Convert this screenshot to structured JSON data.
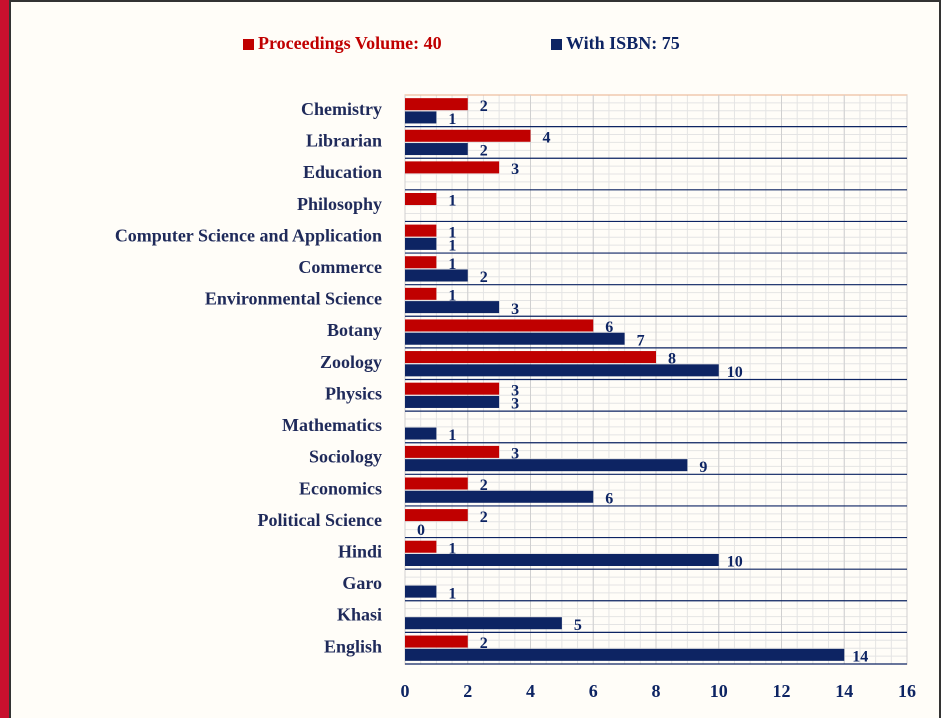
{
  "chart_data": {
    "type": "hbar",
    "categories": [
      "Chemistry",
      "Librarian",
      "Education",
      "Philosophy",
      "Computer Science and Application",
      "Commerce",
      "Environmental Science",
      "Botany",
      "Zoology",
      "Physics",
      "Mathematics",
      "Sociology",
      "Economics",
      "Political Science",
      "Hindi",
      "Garo",
      "Khasi",
      "English"
    ],
    "series": [
      {
        "name": "Proceedings Volume: 40",
        "color": "#c00000",
        "values": [
          2,
          4,
          3,
          1,
          1,
          1,
          1,
          6,
          8,
          3,
          null,
          3,
          2,
          2,
          1,
          null,
          null,
          2
        ]
      },
      {
        "name": "With ISBN: 75",
        "color": "#0d2463",
        "values": [
          1,
          2,
          null,
          null,
          1,
          2,
          3,
          7,
          10,
          3,
          1,
          9,
          6,
          0,
          10,
          1,
          5,
          14
        ]
      }
    ],
    "xlim": [
      0,
      16
    ],
    "xticks": [
      0,
      2,
      4,
      6,
      8,
      10,
      12,
      14,
      16
    ],
    "grid": true,
    "legend": "top"
  }
}
